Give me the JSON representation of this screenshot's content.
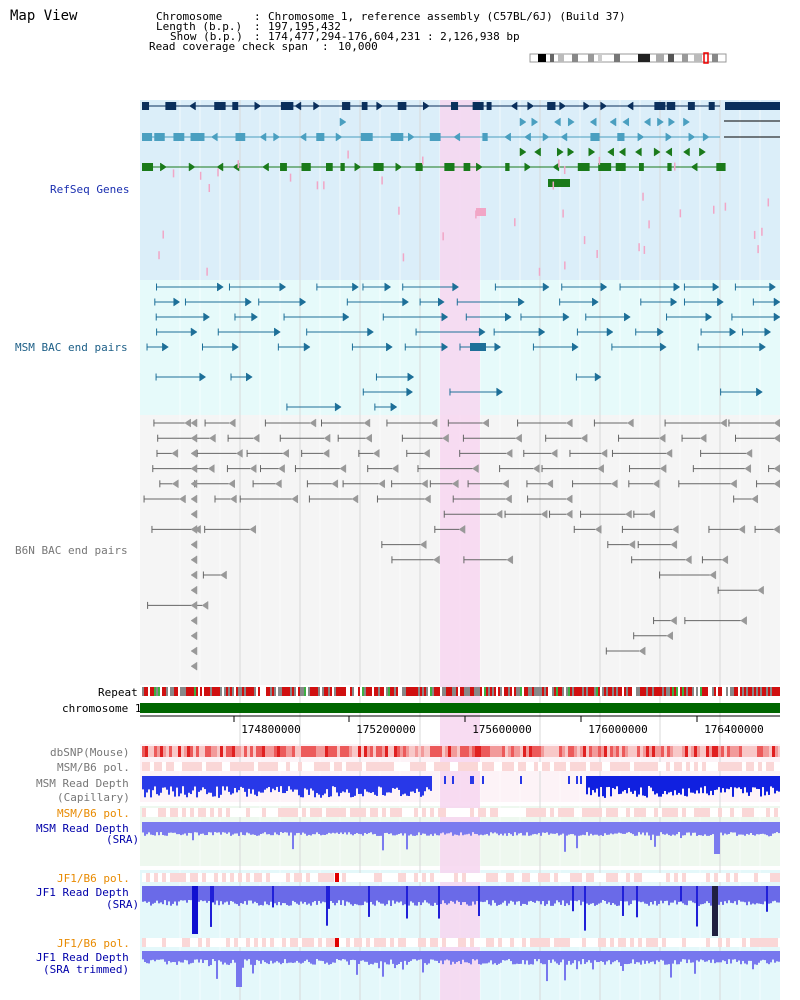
{
  "title": "Map View",
  "info": {
    "chromosome_label": "Chromosome",
    "chromosome_value": "Chromosome 1, reference assembly (C57BL/6J) (Build 37)",
    "length_label": "Length (b.p.)",
    "length_value": "197,195,432",
    "show_label": "Show (b.p.)",
    "show_value": "174,477,294-176,604,231 : 2,126,938 bp",
    "coverage_label": "Read coverage check span",
    "coverage_value": "10,000"
  },
  "track_labels": {
    "refseq": "RefSeq Genes",
    "msm_bac": "MSM BAC end pairs",
    "b6n_bac": "B6N BAC end pairs",
    "repeat": "Repeat",
    "chromosome": "chromosome 1",
    "dbsnp": "dbSNP(Mouse)",
    "msm_b6_pol1": "MSM/B6 pol.",
    "msm_depth_cap_1": "MSM Read Depth",
    "msm_depth_cap_2": "(Capillary)",
    "msm_b6_pol2": "MSM/B6 pol.",
    "msm_depth_sra_1": "MSM Read Depth",
    "msm_depth_sra_2": "(SRA)",
    "jf1_b6_pol1": "JF1/B6 pol.",
    "jf1_depth_sra_1": "JF1 Read Depth",
    "jf1_depth_sra_2": "(SRA)",
    "jf1_b6_pol2": "JF1/B6 pol.",
    "jf1_depth_trim_1": "JF1 Read Depth",
    "jf1_depth_trim_2": "(SRA trimmed)"
  },
  "axis": {
    "ticks": [
      "174800000",
      "175200000",
      "175600000",
      "176000000",
      "176400000"
    ]
  },
  "colors": {
    "highlight": "#f7d6f0",
    "refseq_bg": "#dbeef9",
    "msm_bg": "#e6fafa",
    "b6n_bg": "#f5f5f5",
    "chromosome": "#006600"
  }
}
